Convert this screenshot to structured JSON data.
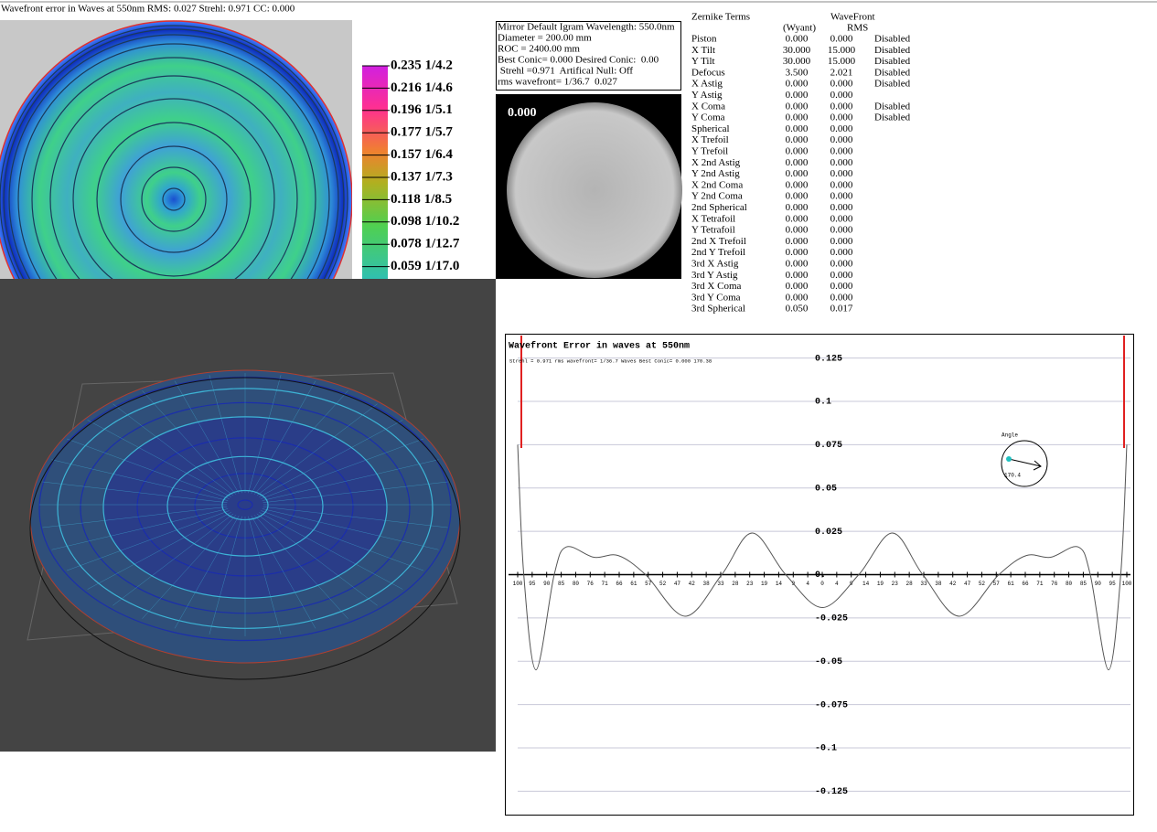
{
  "header": {
    "title": "Wavefront error in Waves at 550nm  RMS: 0.027 Strehl: 0.971 CC: 0.000"
  },
  "contour_legend": [
    "0.235 1/4.2",
    "0.216 1/4.6",
    "0.196 1/5.1",
    "0.177 1/5.7",
    "0.157 1/6.4",
    "0.137 1/7.3",
    "0.118 1/8.5",
    "0.098 1/10.2",
    "0.078 1/12.7",
    "0.059 1/17.0"
  ],
  "info_box": [
    "Mirror Default Igram Wavelength: 550.0nm",
    "Diameter = 200.00 mm",
    "ROC = 2400.00 mm",
    "Best Conic= 0.000 Desired Conic:  0.00",
    " Strehl =0.971  Artifical Null: Off",
    "rms wavefront= 1/36.7  0.027"
  ],
  "igram_label": "0.000",
  "zernike": {
    "title": "Zernike Terms",
    "col_wavefront": "WaveFront",
    "col_wyant": "(Wyant)",
    "col_rms": "RMS",
    "rows": [
      [
        "Piston",
        "0.000",
        "0.000",
        "Disabled"
      ],
      [
        "X Tilt",
        "30.000",
        "15.000",
        "Disabled"
      ],
      [
        "Y Tilt",
        "30.000",
        "15.000",
        "Disabled"
      ],
      [
        "Defocus",
        "3.500",
        "2.021",
        "Disabled"
      ],
      [
        "X Astig",
        "0.000",
        "0.000",
        "Disabled"
      ],
      [
        "Y Astig",
        "0.000",
        "0.000"
      ],
      [
        "X Coma",
        "0.000",
        "0.000",
        "Disabled"
      ],
      [
        "Y Coma",
        "0.000",
        "0.000",
        "Disabled"
      ],
      [
        "Spherical",
        "0.000",
        "0.000"
      ],
      [
        "X Trefoil",
        "0.000",
        "0.000"
      ],
      [
        "Y Trefoil",
        "0.000",
        "0.000"
      ],
      [
        "X 2nd Astig",
        "0.000",
        "0.000"
      ],
      [
        "Y 2nd Astig",
        "0.000",
        "0.000"
      ],
      [
        "X 2nd Coma",
        "0.000",
        "0.000"
      ],
      [
        "Y 2nd Coma",
        "0.000",
        "0.000"
      ],
      [
        "2nd Spherical",
        "0.000",
        "0.000"
      ],
      [
        "X Tetrafoil",
        "0.000",
        "0.000"
      ],
      [
        "Y Tetrafoil",
        "0.000",
        "0.000"
      ],
      [
        "2nd X Trefoil",
        "0.000",
        "0.000"
      ],
      [
        "2nd Y Trefoil",
        "0.000",
        "0.000"
      ],
      [
        "3rd X Astig",
        "0.000",
        "0.000"
      ],
      [
        "3rd Y Astig",
        "0.000",
        "0.000"
      ],
      [
        "3rd X Coma",
        "0.000",
        "0.000"
      ],
      [
        "3rd Y Coma",
        "0.000",
        "0.000"
      ],
      [
        "3rd Spherical",
        "0.050",
        "0.017"
      ]
    ]
  },
  "profile": {
    "title": "Wavefront Error in waves at 550nm",
    "subtitle": "Strehl = 0.971 rms wavefront= 1/36.7 Waves Best Conic= 0.000 170.38",
    "angle_label": "Angle",
    "angle_value": "170.4",
    "ylim": [
      -0.138,
      0.138
    ],
    "yticks": [
      0.125,
      0.1,
      0.075,
      0.05,
      0.025,
      {
        "value": 0,
        "label": "0."
      },
      -0.025,
      -0.05,
      -0.075,
      -0.1,
      -0.125
    ],
    "xlim": [
      -100,
      100
    ],
    "xticks": [
      {
        "value": -100,
        "label": "100"
      },
      {
        "value": -95.24,
        "label": "95"
      },
      {
        "value": -90.48,
        "label": "90"
      },
      {
        "value": -85.71,
        "label": "85"
      },
      {
        "value": -80.95,
        "label": "80"
      },
      {
        "value": -76.19,
        "label": "76"
      },
      {
        "value": -71.43,
        "label": "71"
      },
      {
        "value": -66.67,
        "label": "66"
      },
      {
        "value": -61.9,
        "label": "61"
      },
      {
        "value": -57.14,
        "label": "57"
      },
      {
        "value": -52.38,
        "label": "52"
      },
      {
        "value": -47.62,
        "label": "47"
      },
      {
        "value": -42.86,
        "label": "42"
      },
      {
        "value": -38.1,
        "label": "38"
      },
      {
        "value": -33.33,
        "label": "33"
      },
      {
        "value": -28.57,
        "label": "28"
      },
      {
        "value": -23.81,
        "label": "23"
      },
      {
        "value": -19.05,
        "label": "19"
      },
      {
        "value": -14.29,
        "label": "14"
      },
      {
        "value": -9.52,
        "label": "9"
      },
      {
        "value": -4.76,
        "label": "4"
      },
      0,
      {
        "value": 4.76,
        "label": "4"
      },
      {
        "value": 9.52,
        "label": "9"
      },
      {
        "value": 14.29,
        "label": "14"
      },
      {
        "value": 19.05,
        "label": "19"
      },
      {
        "value": 23.81,
        "label": "23"
      },
      {
        "value": 28.57,
        "label": "28"
      },
      {
        "value": 33.33,
        "label": "33"
      },
      {
        "value": 38.1,
        "label": "38"
      },
      {
        "value": 42.86,
        "label": "42"
      },
      {
        "value": 47.62,
        "label": "47"
      },
      {
        "value": 52.38,
        "label": "52"
      },
      {
        "value": 57.14,
        "label": "57"
      },
      {
        "value": 61.9,
        "label": "61"
      },
      {
        "value": 66.67,
        "label": "66"
      },
      {
        "value": 71.43,
        "label": "71"
      },
      {
        "value": 76.19,
        "label": "76"
      },
      {
        "value": 80.95,
        "label": "80"
      },
      {
        "value": 85.71,
        "label": "85"
      },
      {
        "value": 90.48,
        "label": "90"
      },
      {
        "value": 95.24,
        "label": "95"
      },
      100
    ],
    "x": [
      -100,
      -98,
      -94,
      -88,
      -84,
      -75,
      -67,
      -58,
      -45,
      -33,
      -23,
      -12,
      0,
      12,
      23,
      33,
      45,
      58,
      67,
      75,
      84,
      88,
      94,
      98,
      100
    ],
    "values": [
      0.075,
      0,
      -0.055,
      0,
      0.016,
      0.01,
      0.011,
      0,
      -0.024,
      0,
      0.024,
      0,
      -0.019,
      0,
      0.024,
      0,
      -0.024,
      0,
      0.011,
      0.01,
      0.016,
      0,
      -0.055,
      0,
      0.075
    ]
  }
}
